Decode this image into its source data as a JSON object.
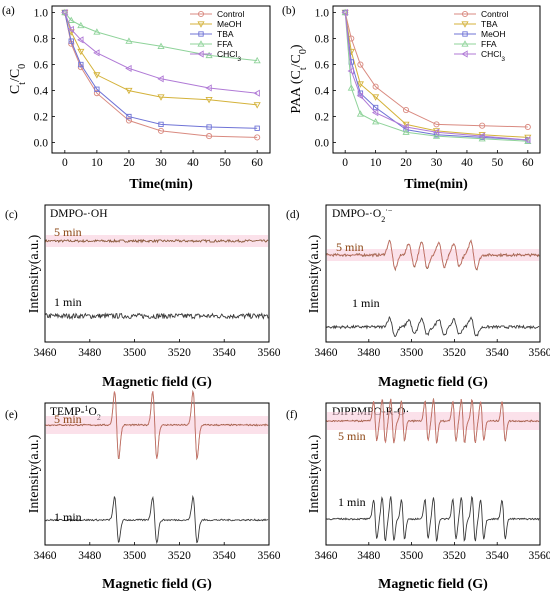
{
  "figure": {
    "panel_labels": [
      "(a)",
      "(b)",
      "(c)",
      "(d)",
      "(e)",
      "(f)"
    ]
  },
  "colors": {
    "Control": "#d98a80",
    "MeOH": "#d4b23a",
    "TBA": "#6f73d6",
    "FFA": "#8fd39a",
    "CHCl3": "#b07ad6",
    "spectrum_5min": "#8b5a3c",
    "spectrum_5min_fit": "#e07f7f",
    "spectrum_1min": "#3a3a3a",
    "band": "#f7c8d8"
  },
  "chart_data": [
    {
      "panel": "(a)",
      "type": "line",
      "xlabel": "Time(min)",
      "ylabel_main": "C",
      "ylabel_sub1": "t",
      "ylabel_mid": "/C",
      "ylabel_sub2": "0",
      "xlim": [
        -4,
        64
      ],
      "ylim": [
        -0.08,
        1.05
      ],
      "xticks": [
        0,
        10,
        20,
        30,
        40,
        50,
        60
      ],
      "yticks": [
        "0.0",
        "0.2",
        "0.4",
        "0.6",
        "0.8",
        "1.0"
      ],
      "x": [
        0,
        2,
        5,
        10,
        20,
        30,
        45,
        60
      ],
      "legend_pos": "top-right",
      "series": [
        {
          "name": "Control",
          "key": "Control",
          "marker": "circle",
          "values": [
            1.0,
            0.76,
            0.58,
            0.38,
            0.17,
            0.09,
            0.05,
            0.04
          ]
        },
        {
          "name": "MeOH",
          "key": "MeOH",
          "marker": "down-triangle",
          "values": [
            1.0,
            0.85,
            0.7,
            0.52,
            0.4,
            0.35,
            0.33,
            0.29
          ]
        },
        {
          "name": "TBA",
          "key": "TBA",
          "marker": "square",
          "values": [
            1.0,
            0.78,
            0.6,
            0.41,
            0.2,
            0.14,
            0.12,
            0.11
          ]
        },
        {
          "name": "FFA",
          "key": "FFA",
          "marker": "up-triangle",
          "values": [
            1.0,
            0.94,
            0.9,
            0.85,
            0.78,
            0.74,
            0.67,
            0.63
          ]
        },
        {
          "name": "CHCl3",
          "key": "CHCl3",
          "marker": "left-triangle",
          "values": [
            1.0,
            0.87,
            0.79,
            0.69,
            0.57,
            0.49,
            0.42,
            0.38
          ]
        }
      ]
    },
    {
      "panel": "(b)",
      "type": "line",
      "xlabel": "Time(min)",
      "ylabel_main": "PAA (C",
      "ylabel_sub1": "t",
      "ylabel_mid": "/C",
      "ylabel_sub2": "0",
      "ylabel_end": ")",
      "xlim": [
        -4,
        64
      ],
      "ylim": [
        -0.08,
        1.05
      ],
      "xticks": [
        0,
        10,
        20,
        30,
        40,
        50,
        60
      ],
      "yticks": [
        "0.0",
        "0.2",
        "0.4",
        "0.6",
        "0.8",
        "1.0"
      ],
      "x": [
        0,
        2,
        5,
        10,
        20,
        30,
        45,
        60
      ],
      "legend_pos": "top-right",
      "series": [
        {
          "name": "Control",
          "key": "Control",
          "marker": "circle",
          "values": [
            1.0,
            0.8,
            0.6,
            0.43,
            0.25,
            0.14,
            0.13,
            0.12
          ]
        },
        {
          "name": "TBA",
          "key": "MeOH",
          "marker": "down-triangle",
          "values": [
            1.0,
            0.7,
            0.45,
            0.35,
            0.14,
            0.09,
            0.06,
            0.04
          ]
        },
        {
          "name": "MeOH",
          "key": "TBA",
          "marker": "square",
          "values": [
            1.0,
            0.62,
            0.38,
            0.27,
            0.1,
            0.06,
            0.04,
            0.02
          ]
        },
        {
          "name": "FFA",
          "key": "FFA",
          "marker": "up-triangle",
          "values": [
            1.0,
            0.42,
            0.22,
            0.16,
            0.08,
            0.05,
            0.03,
            0.01
          ]
        },
        {
          "name": "CHCl3",
          "key": "CHCl3",
          "marker": "left-triangle",
          "values": [
            1.0,
            0.55,
            0.36,
            0.23,
            0.12,
            0.08,
            0.05,
            0.02
          ]
        }
      ]
    },
    {
      "panel": "(c)",
      "type": "line",
      "inset": "DMPO-·OH",
      "xlabel": "Magnetic field (G)",
      "ylabel": "Intensity(a.u.)",
      "xlim": [
        3460,
        3560
      ],
      "xticks": [
        3460,
        3480,
        3500,
        3520,
        3540,
        3560
      ],
      "peaks": [],
      "weights": [],
      "curves": [
        {
          "label": "5 min",
          "amp": 0,
          "noise": 1.2
        },
        {
          "label": "1 min",
          "amp": 0,
          "noise": 2.6
        }
      ]
    },
    {
      "panel": "(d)",
      "type": "line",
      "inset_main": "DMPO-·O",
      "inset_sub": "2",
      "inset_sup": "·−",
      "xlabel": "Magnetic field (G)",
      "ylabel": "Intensity(a.u.)",
      "xlim": [
        3460,
        3560
      ],
      "xticks": [
        3460,
        3480,
        3500,
        3520,
        3540,
        3560
      ],
      "peaks": [
        3491,
        3500,
        3506,
        3514,
        3521,
        3529
      ],
      "weights": [
        1,
        0.8,
        0.9,
        0.9,
        0.8,
        1
      ],
      "curves": [
        {
          "label": "5 min",
          "amp": 14,
          "noise": 1.3
        },
        {
          "label": "1 min",
          "amp": 9,
          "noise": 1.4
        }
      ]
    },
    {
      "panel": "(e)",
      "type": "line",
      "inset_main": "TEMP-",
      "inset_sup": "1",
      "inset_end": "O",
      "inset_sub": "2",
      "xlabel": "Magnetic field (G)",
      "ylabel": "Intensity(a.u.)",
      "xlim": [
        3460,
        3560
      ],
      "xticks": [
        3460,
        3480,
        3500,
        3520,
        3540,
        3560
      ],
      "peaks": [
        3492,
        3509,
        3527
      ],
      "weights": [
        1,
        1,
        1
      ],
      "curves": [
        {
          "label": "5 min",
          "amp": 34,
          "noise": 0.8
        },
        {
          "label": "1 min",
          "amp": 23,
          "noise": 0.8
        }
      ]
    },
    {
      "panel": "(f)",
      "type": "line",
      "inset": "DIPPMPO-R-O·",
      "xlabel": "Magnetic field (G)",
      "ylabel": "Intensity(a.u.)",
      "xlim": [
        3460,
        3560
      ],
      "xticks": [
        3460,
        3480,
        3500,
        3520,
        3540,
        3560
      ],
      "peaks": [
        3483,
        3487,
        3491,
        3496,
        3507,
        3511,
        3520,
        3524,
        3529,
        3533,
        3543
      ],
      "weights": [
        0.9,
        1,
        1,
        0.9,
        0.9,
        1,
        0.9,
        1,
        1,
        0.9,
        0.9
      ],
      "curves": [
        {
          "label": "5 min",
          "amp": 22,
          "noise": 0.8
        },
        {
          "label": "1 min",
          "amp": 22,
          "noise": 0.8
        }
      ]
    }
  ]
}
